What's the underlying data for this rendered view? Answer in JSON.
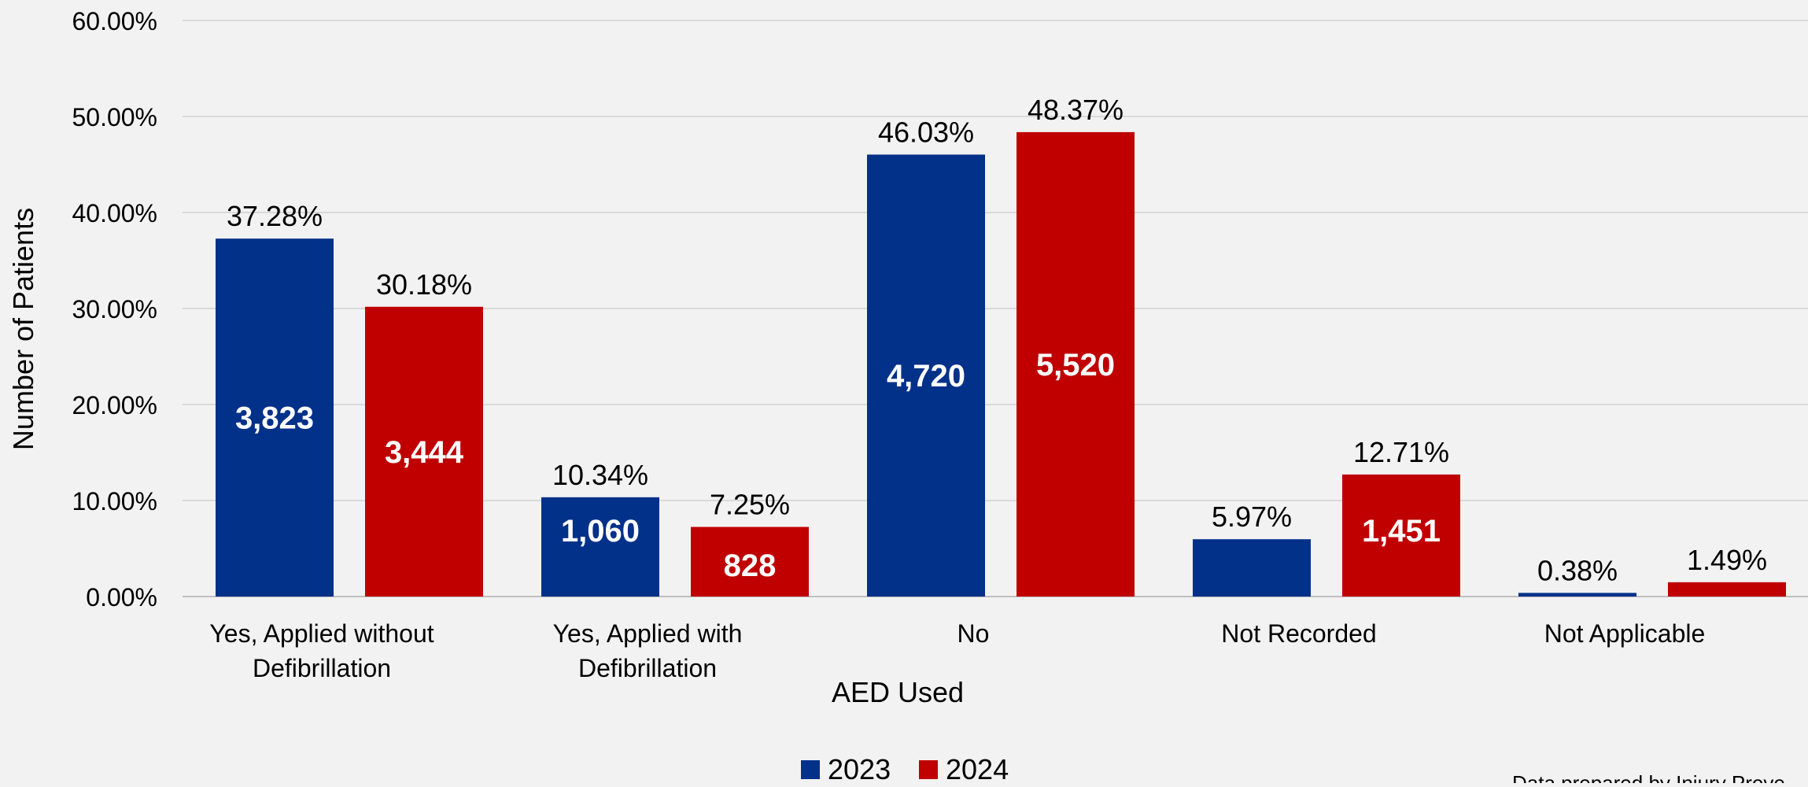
{
  "chart_data": {
    "type": "bar",
    "title": "",
    "xlabel": "AED Used",
    "ylabel": "Number of Patients",
    "ylim": [
      0,
      60
    ],
    "yticks": [
      "0.00%",
      "10.00%",
      "20.00%",
      "30.00%",
      "40.00%",
      "50.00%",
      "60.00%"
    ],
    "grid": true,
    "legend_position": "bottom",
    "categories": [
      "Yes, Applied without Defibrillation",
      "Yes, Applied with Defibrillation",
      "No",
      "Not Recorded",
      "Not Applicable"
    ],
    "series": [
      {
        "name": "2023",
        "color": "#02318a",
        "values": [
          37.28,
          10.34,
          46.03,
          5.97,
          0.38
        ],
        "percent_labels": [
          "37.28%",
          "10.34%",
          "46.03%",
          "5.97%",
          "0.38%"
        ],
        "count_labels": [
          "3,823",
          "1,060",
          "4,720",
          "",
          ""
        ]
      },
      {
        "name": "2024",
        "color": "#c00000",
        "values": [
          30.18,
          7.25,
          48.37,
          12.71,
          1.49
        ],
        "percent_labels": [
          "30.18%",
          "7.25%",
          "48.37%",
          "12.71%",
          "1.49%"
        ],
        "count_labels": [
          "3,444",
          "828",
          "5,520",
          "1,451",
          ""
        ]
      }
    ]
  },
  "footer_note": "Data prepared by Injury Preve"
}
